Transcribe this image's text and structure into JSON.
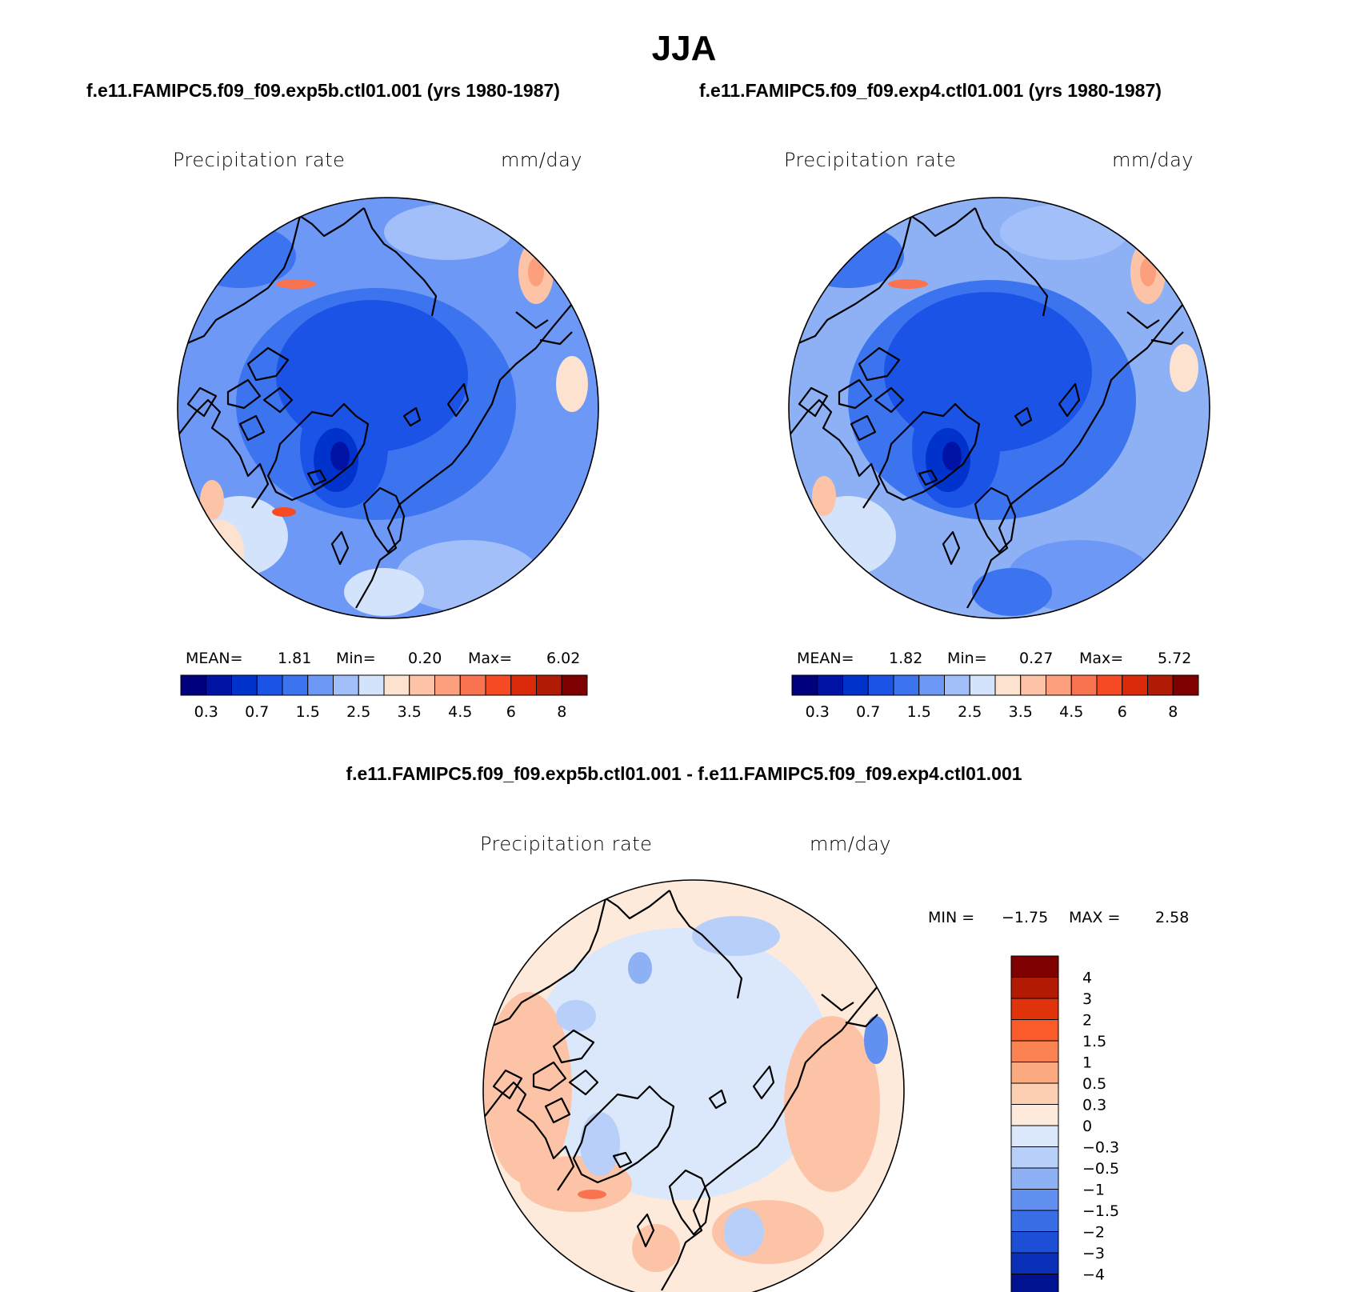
{
  "title": "JJA",
  "panel_left": {
    "case": "f.e11.FAMIPC5.f09_f09.exp5b.ctl01.001 (yrs 1980-1987)",
    "variable": "Precipitation rate",
    "units": "mm/day",
    "mean_label": "MEAN=",
    "mean": "1.81",
    "min_label": "Min=",
    "min": "0.20",
    "max_label": "Max=",
    "max": "6.02"
  },
  "panel_right": {
    "case": "f.e11.FAMIPC5.f09_f09.exp4.ctl01.001 (yrs 1980-1987)",
    "variable": "Precipitation rate",
    "units": "mm/day",
    "mean_label": "MEAN=",
    "mean": "1.82",
    "min_label": "Min=",
    "min": "0.27",
    "max_label": "Max=",
    "max": "5.72"
  },
  "panel_diff": {
    "case": "f.e11.FAMIPC5.f09_f09.exp5b.ctl01.001 - f.e11.FAMIPC5.f09_f09.exp4.ctl01.001",
    "variable": "Precipitation rate",
    "units": "mm/day",
    "min_label": "MIN =",
    "min": "−1.75",
    "max_label": "MAX =",
    "max": "2.58"
  },
  "abs_colorbar": {
    "colors": [
      "#00007f",
      "#0013a4",
      "#0033cc",
      "#1a53e6",
      "#3c74f0",
      "#6d98f5",
      "#a3bff9",
      "#d3e3fb",
      "#fde3cf",
      "#fcc3a6",
      "#fb9f7c",
      "#fa7350",
      "#f64a25",
      "#db2a0a",
      "#b11a04",
      "#7f0000"
    ],
    "tick_labels": [
      "0.3",
      "0.7",
      "1.5",
      "2.5",
      "3.5",
      "4.5",
      "6",
      "8"
    ]
  },
  "diff_colorbar": {
    "colors_top_to_bottom": [
      "#7f0000",
      "#b31a04",
      "#e0320b",
      "#fb5a2a",
      "#fa8253",
      "#fbaa80",
      "#fdcfb2",
      "#fdeadb",
      "#dbe8fb",
      "#b7cff9",
      "#8eb1f5",
      "#6290f0",
      "#3a6ee6",
      "#1c4fd5",
      "#0a2fb8",
      "#00128f"
    ],
    "tick_labels": [
      "4",
      "3",
      "2",
      "1.5",
      "1",
      "0.5",
      "0.3",
      "0",
      "−0.3",
      "−0.5",
      "−1",
      "−1.5",
      "−2",
      "−3",
      "−4"
    ]
  },
  "colors": {
    "ocean_deep": "#1f4fdc",
    "ocean_mid": "#6d98f5",
    "wet_red": "#f0683e",
    "diff_neutral": "#dbe8fb",
    "diff_warm": "#fcc3a6",
    "coastline": "#000000"
  }
}
